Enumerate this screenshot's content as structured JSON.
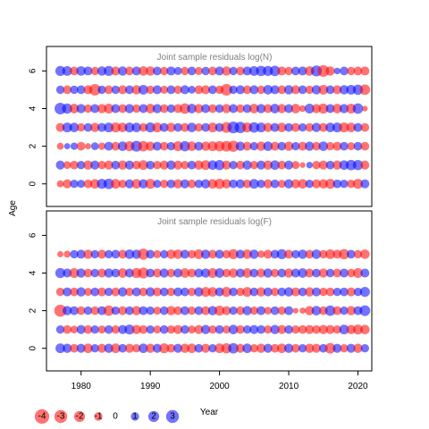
{
  "chart_data": {
    "type": "scatter",
    "xlabel": "Year",
    "ylabel": "Age",
    "xlim": [
      1975,
      2022
    ],
    "ylim": [
      -1.2,
      7.3
    ],
    "x_ticks": [
      1980,
      1990,
      2000,
      2010,
      2020
    ],
    "y_ticks": [
      0,
      2,
      4,
      6
    ],
    "colors": {
      "positive": "#0000ff",
      "negative": "#ff0000"
    },
    "opacity": 0.55,
    "legend": {
      "position": "bottom-left",
      "values": [
        -4,
        -3,
        -2,
        -1,
        0,
        1,
        2,
        3
      ],
      "labels": [
        "-4",
        "-3",
        "-2",
        "-1",
        "0",
        "1",
        "2",
        "3"
      ]
    },
    "panels": [
      {
        "title": "Joint sample residuals log(N)",
        "ages": [
          0,
          1,
          2,
          3,
          4,
          5,
          6
        ],
        "years": [
          1977,
          1978,
          1979,
          1980,
          1981,
          1982,
          1983,
          1984,
          1985,
          1986,
          1987,
          1988,
          1989,
          1990,
          1991,
          1992,
          1993,
          1994,
          1995,
          1996,
          1997,
          1998,
          1999,
          2000,
          2001,
          2002,
          2003,
          2004,
          2005,
          2006,
          2007,
          2008,
          2009,
          2010,
          2011,
          2012,
          2013,
          2014,
          2015,
          2016,
          2017,
          2018,
          2019,
          2020,
          2021
        ],
        "residuals": [
          [
            -0.6,
            -1.2,
            1.0,
            0.9,
            -1.1,
            -1.4,
            1.6,
            1.8,
            -1.5,
            -1.0,
            1.2,
            -1.4,
            1.3,
            -1.6,
            0.9,
            -1.0,
            1.1,
            -1.3,
            1.2,
            -1.1,
            1.0,
            1.3,
            -1.4,
            -1.7,
            -1.3,
            1.1,
            1.2,
            -1.1,
            1.5,
            1.0,
            -1.2,
            1.1,
            -0.9,
            1.3,
            -1.2,
            -1.4,
            1.0,
            -1.2,
            -1.3,
            -1.6,
            1.1,
            1.0,
            -1.0,
            -1.6,
            1.2
          ],
          [
            1.2,
            -0.8,
            -1.1,
            1.0,
            -1.3,
            1.2,
            -1.0,
            -1.2,
            1.1,
            -1.3,
            1.2,
            -1.1,
            -1.5,
            1.1,
            -1.0,
            -1.2,
            1.3,
            -1.2,
            -1.0,
            1.1,
            -1.3,
            -1.5,
            1.4,
            1.7,
            -1.2,
            1.0,
            -1.1,
            1.3,
            -1.0,
            1.2,
            -1.3,
            1.4,
            -1.1,
            1.2,
            -0.9,
            -0.3,
            0.5,
            -1.0,
            -1.2,
            1.1,
            -1.3,
            1.4,
            1.8,
            1.7,
            -1.2
          ],
          [
            -0.6,
            0.4,
            0.7,
            -1.1,
            -0.4,
            0.8,
            -0.7,
            1.2,
            -1.1,
            1.4,
            -1.6,
            2.0,
            -1.8,
            -1.3,
            1.2,
            -1.1,
            1.0,
            -1.6,
            1.7,
            -1.4,
            1.2,
            -1.3,
            -1.5,
            -1.7,
            -1.9,
            -2.1,
            1.3,
            -1.2,
            1.0,
            -1.3,
            1.4,
            -1.2,
            1.1,
            -1.3,
            1.0,
            -1.2,
            1.3,
            -1.1,
            1.4,
            -1.0,
            -1.2,
            1.1,
            -0.9,
            1.1,
            -1.1
          ],
          [
            -1.2,
            1.5,
            1.4,
            -1.0,
            1.1,
            -1.3,
            1.2,
            1.5,
            -1.6,
            -1.4,
            1.5,
            1.4,
            -1.1,
            1.6,
            -1.5,
            1.2,
            -1.3,
            1.1,
            -1.2,
            1.4,
            -1.0,
            1.1,
            -1.5,
            1.2,
            -1.9,
            2.4,
            2.2,
            -1.6,
            1.8,
            1.5,
            -1.3,
            1.2,
            -1.4,
            1.1,
            -1.2,
            1.0,
            -1.1,
            1.3,
            -1.2,
            1.4,
            1.5,
            -1.6,
            -1.4,
            1.2,
            -1.1
          ],
          [
            2.3,
            1.7,
            -1.4,
            1.3,
            -1.0,
            1.2,
            -1.3,
            -1.5,
            1.2,
            -1.1,
            1.3,
            -1.0,
            1.2,
            -1.4,
            1.3,
            -1.1,
            1.0,
            -1.2,
            -1.8,
            1.4,
            -1.3,
            1.2,
            -1.1,
            1.0,
            -1.3,
            1.2,
            -1.0,
            1.1,
            -1.4,
            1.3,
            -1.2,
            1.4,
            -1.3,
            1.2,
            -1.4,
            -0.5,
            1.5,
            -1.3,
            -1.6,
            1.2,
            -1.4,
            1.3,
            -1.5,
            1.8,
            -0.3
          ],
          [
            1.0,
            -1.1,
            1.0,
            1.1,
            -1.2,
            -2.3,
            1.0,
            -1.1,
            1.0,
            -1.2,
            1.1,
            -1.3,
            1.5,
            -1.0,
            1.2,
            -0.9,
            1.1,
            -1.0,
            1.2,
            0.8,
            -1.1,
            -1.2,
            1.1,
            -1.0,
            -2.4,
            1.0,
            1.2,
            -1.1,
            1.2,
            -1.0,
            1.4,
            1.2,
            -1.1,
            1.3,
            -1.2,
            1.1,
            -1.0,
            1.3,
            -1.5,
            1.1,
            -1.2,
            1.3,
            1.5,
            1.7,
            -1.8
          ],
          [
            1.6,
            1.5,
            -1.1,
            1.4,
            1.2,
            -1.0,
            1.3,
            1.6,
            -1.2,
            1.3,
            -1.1,
            1.2,
            -1.4,
            -1.3,
            1.1,
            -1.0,
            1.2,
            0.9,
            -1.0,
            1.1,
            -0.9,
            1.0,
            -1.1,
            1.2,
            -1.3,
            1.0,
            -1.1,
            1.2,
            1.5,
            1.7,
            1.6,
            1.8,
            -1.2,
            -1.0,
            1.1,
            1.2,
            -1.4,
            2.0,
            -2.4,
            -1.3,
            0.5,
            1.1,
            -1.0,
            -1.1,
            -1.2
          ]
        ]
      },
      {
        "title": "Joint sample residuals log(F)",
        "ages": [
          0,
          1,
          2,
          3,
          4,
          5,
          6
        ],
        "years": [
          1977,
          1978,
          1979,
          1980,
          1981,
          1982,
          1983,
          1984,
          1985,
          1986,
          1987,
          1988,
          1989,
          1990,
          1991,
          1992,
          1993,
          1994,
          1995,
          1996,
          1997,
          1998,
          1999,
          2000,
          2001,
          2002,
          2003,
          2004,
          2005,
          2006,
          2007,
          2008,
          2009,
          2010,
          2011,
          2012,
          2013,
          2014,
          2015,
          2016,
          2017,
          2018,
          2019,
          2020,
          2021
        ],
        "residuals": [
          [
            1.5,
            1.3,
            -1.1,
            1.2,
            -1.4,
            1.0,
            -1.2,
            1.3,
            -1.5,
            1.1,
            -1.2,
            -1.0,
            1.4,
            -1.3,
            1.2,
            -1.6,
            -1.1,
            1.2,
            -1.3,
            -1.4,
            1.1,
            -1.2,
            1.0,
            -1.5,
            -1.7,
            1.8,
            -1.2,
            1.4,
            -1.0,
            -1.3,
            1.2,
            -1.1,
            -1.4,
            1.3,
            -1.1,
            1.0,
            -1.3,
            -1.2,
            1.1,
            -1.9,
            1.2,
            -1.0,
            1.2,
            -1.3,
            1.0
          ],
          [
            1.0,
            -1.1,
            -0.8,
            1.2,
            -1.1,
            1.0,
            -0.9,
            1.1,
            -1.0,
            1.2,
            1.6,
            -1.3,
            -1.1,
            1.0,
            -0.9,
            1.1,
            -1.0,
            -1.2,
            1.1,
            -0.9,
            -1.2,
            1.3,
            -1.0,
            1.1,
            -0.9,
            1.4,
            -1.1,
            1.0,
            1.2,
            1.1,
            -1.0,
            1.3,
            -1.2,
            1.1,
            -1.0,
            -1.1,
            -1.2,
            -1.1,
            -1.3,
            -1.2,
            -1.0,
            1.5,
            -1.3,
            -1.6,
            -1.4
          ],
          [
            -2.6,
            1.3,
            1.2,
            -1.1,
            1.0,
            -1.1,
            1.2,
            -1.8,
            1.0,
            -1.2,
            1.1,
            -1.3,
            1.2,
            1.0,
            -0.9,
            1.1,
            -1.3,
            -1.1,
            1.2,
            -1.0,
            1.1,
            -1.2,
            1.3,
            -1.6,
            -1.2,
            1.0,
            -1.1,
            1.3,
            -1.0,
            1.2,
            -0.8,
            1.1,
            -1.0,
            1.2,
            -0.3,
            -0.4,
            -1.3,
            1.4,
            -1.1,
            1.8,
            -1.2,
            1.0,
            -1.3,
            1.2,
            1.9
          ],
          [
            -1.0,
            1.2,
            -1.1,
            1.3,
            -0.9,
            1.1,
            -1.2,
            1.0,
            -1.1,
            1.3,
            -1.0,
            1.2,
            -1.1,
            1.3,
            -1.2,
            1.1,
            -1.0,
            1.2,
            1.1,
            -1.0,
            1.3,
            -1.5,
            -1.4,
            1.2,
            -1.6,
            1.1,
            -1.0,
            -1.5,
            1.1,
            -1.3,
            1.2,
            -1.0,
            1.1,
            1.3,
            -1.2,
            1.1,
            -1.3,
            1.2,
            -1.0,
            -1.1,
            1.0,
            1.1,
            -1.2,
            1.0,
            1.6
          ],
          [
            1.6,
            1.2,
            -1.5,
            1.3,
            -1.1,
            1.0,
            -1.2,
            1.3,
            1.1,
            -1.4,
            1.2,
            -1.6,
            -2.0,
            1.1,
            -1.2,
            1.3,
            -1.0,
            1.2,
            -1.4,
            -1.1,
            1.2,
            1.3,
            -1.5,
            1.4,
            -1.0,
            -1.3,
            1.2,
            -1.4,
            1.1,
            -1.2,
            1.3,
            -1.0,
            1.1,
            -1.3,
            1.2,
            1.4,
            -1.2,
            1.1,
            -1.3,
            1.0,
            -1.1,
            1.2,
            -1.0,
            -1.5,
            1.2
          ],
          [
            -0.4,
            -0.6,
            1.0,
            1.2,
            -1.3,
            1.0,
            -1.2,
            1.0,
            1.1,
            -1.1,
            1.4,
            1.3,
            -2.1,
            1.1,
            -0.9,
            1.0,
            -1.3,
            -1.4,
            1.2,
            -1.0,
            -1.5,
            1.3,
            -1.1,
            1.2,
            -1.0,
            -1.6,
            1.2,
            -1.4,
            1.3,
            -0.7,
            -1.2,
            1.1,
            1.6,
            -1.2,
            1.0,
            1.3,
            -1.1,
            1.4,
            -1.0,
            -1.5,
            -1.2,
            -1.7,
            1.1,
            -1.0,
            -1.4
          ],
          [
            0,
            0,
            0,
            0,
            0,
            0,
            0,
            0,
            0,
            0,
            0,
            0,
            0,
            0,
            0,
            0,
            0,
            0,
            0,
            0,
            0,
            0,
            0,
            0,
            0,
            0,
            0,
            0,
            0,
            0,
            0,
            0,
            0,
            0,
            0,
            0,
            0,
            0,
            0,
            0,
            0,
            0,
            0,
            0,
            0
          ]
        ]
      }
    ]
  }
}
